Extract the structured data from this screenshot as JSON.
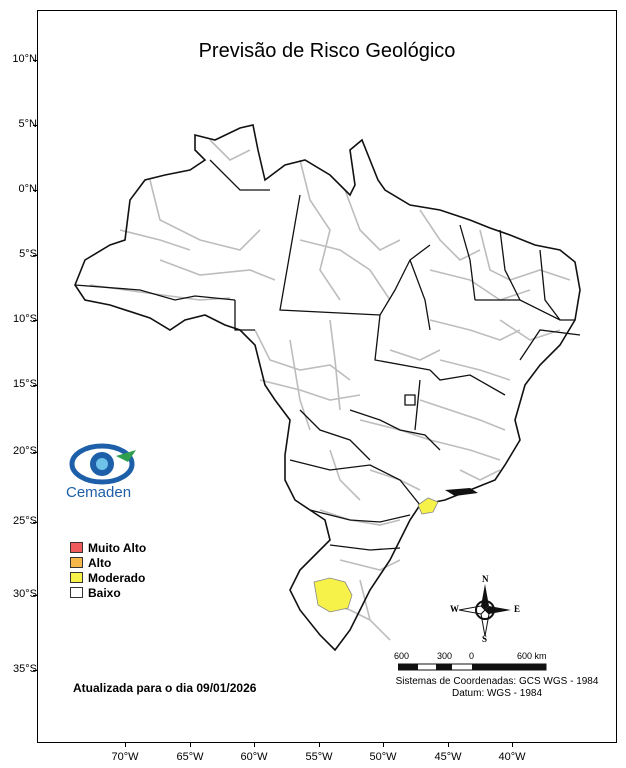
{
  "title": "Previsão de Risco Geológico",
  "axes": {
    "latitude_labels": [
      "10°N",
      "5°N",
      "0°N",
      "5°S",
      "10°S",
      "15°S",
      "20°S",
      "25°S",
      "30°S",
      "35°S"
    ],
    "longitude_labels": [
      "70°W",
      "65°W",
      "60°W",
      "55°W",
      "50°W",
      "45°W",
      "40°W"
    ]
  },
  "legend": {
    "items": [
      {
        "label": "Muito Alto",
        "color": "#ef5b5b"
      },
      {
        "label": "Alto",
        "color": "#f5b64a"
      },
      {
        "label": "Moderado",
        "color": "#f7f24a"
      },
      {
        "label": "Baixo",
        "color": "#ffffff"
      }
    ]
  },
  "logo": {
    "name": "Cemaden",
    "icon": "cemaden-eye-logo"
  },
  "updated_text": "Atualizada para o dia 09/01/2026",
  "scale_bar": {
    "labels": [
      "600",
      "300",
      "0",
      "600 km"
    ]
  },
  "compass": {
    "n": "N",
    "s": "S",
    "e": "E",
    "w": "W"
  },
  "crs": {
    "line1": "Sistemas de Coordenadas: GCS WGS - 1984",
    "line2": "Datum: WGS - 1984"
  },
  "highlighted_areas": [
    {
      "region": "Rio Grande do Sul (western)",
      "level": "Moderado"
    },
    {
      "region": "São Paulo coast",
      "level": "Moderado"
    }
  ],
  "colors": {
    "border": "#111111",
    "internal_border": "#bdbdbd",
    "moderate": "#f7f24a"
  }
}
